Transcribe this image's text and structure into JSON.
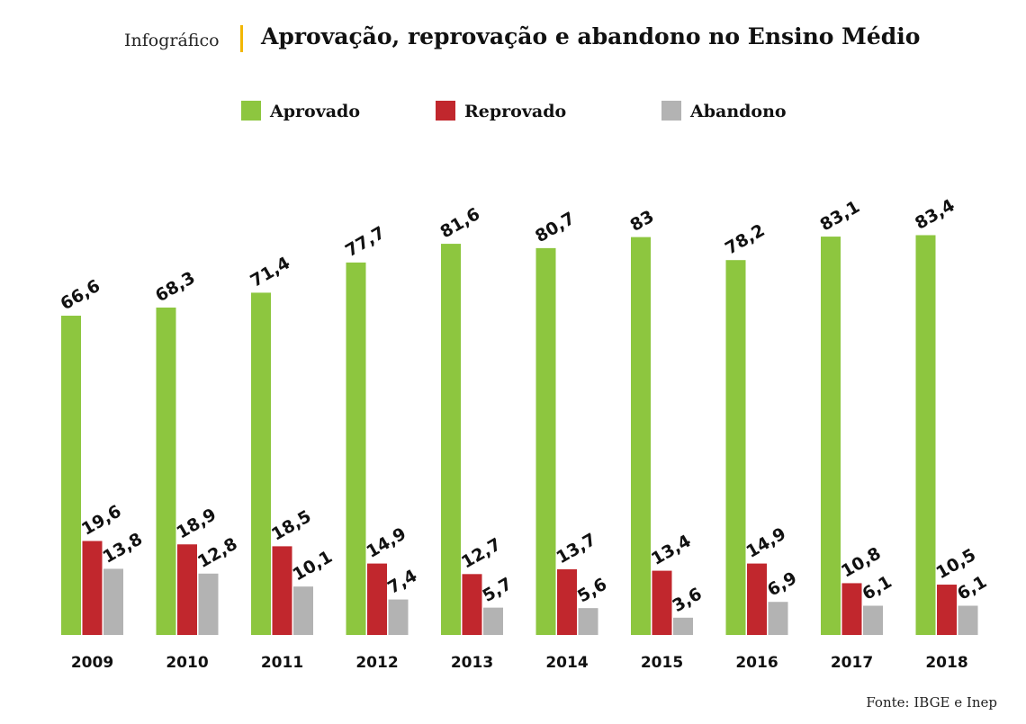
{
  "header": {
    "kicker": "Infográfico",
    "title": "Aprovação, reprovação e abandono no Ensino Médio"
  },
  "source": "Fonte: IBGE e Inep",
  "colors": {
    "Aprovado": "#8dc63f",
    "Reprovado": "#c1272d",
    "Abandono": "#b3b3b3",
    "accent": "#f2b705"
  },
  "chart_data": {
    "type": "bar",
    "title": "Aprovação, reprovação e abandono no Ensino Médio",
    "xlabel": "",
    "ylabel": "",
    "ylim": [
      0,
      100
    ],
    "grid": false,
    "legend": "top-center",
    "categories": [
      "2009",
      "2010",
      "2011",
      "2012",
      "2013",
      "2014",
      "2015",
      "2016",
      "2017",
      "2018"
    ],
    "series": [
      {
        "name": "Aprovado",
        "values": [
          66.6,
          68.3,
          71.4,
          77.7,
          81.6,
          80.7,
          83,
          78.2,
          83.1,
          83.4
        ],
        "labels": [
          "66,6",
          "68,3",
          "71,4",
          "77,7",
          "81,6",
          "80,7",
          "83",
          "78,2",
          "83,1",
          "83,4"
        ]
      },
      {
        "name": "Reprovado",
        "values": [
          19.6,
          18.9,
          18.5,
          14.9,
          12.7,
          13.7,
          13.4,
          14.9,
          10.8,
          10.5
        ],
        "labels": [
          "19,6",
          "18,9",
          "18,5",
          "14,9",
          "12,7",
          "13,7",
          "13,4",
          "14,9",
          "10,8",
          "10,5"
        ]
      },
      {
        "name": "Abandono",
        "values": [
          13.8,
          12.8,
          10.1,
          7.4,
          5.7,
          5.6,
          3.6,
          6.9,
          6.1,
          6.1
        ],
        "labels": [
          "13,8",
          "12,8",
          "10,1",
          "7,4",
          "5,7",
          "5,6",
          "3,6",
          "6,9",
          "6,1",
          "6,1"
        ]
      }
    ]
  }
}
